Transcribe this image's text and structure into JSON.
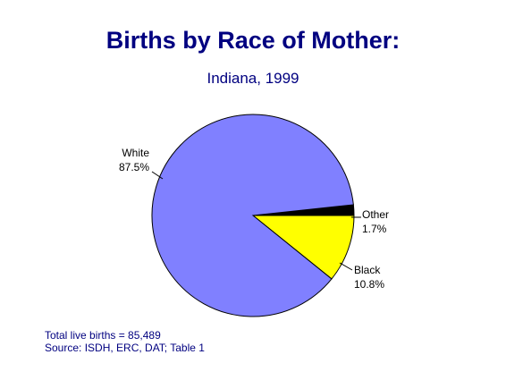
{
  "chart_data": {
    "type": "pie",
    "title": "Births by Race of Mother:",
    "subtitle": "Indiana, 1999",
    "slices": [
      {
        "name": "Other",
        "percent_label": "1.7%",
        "value": 1.7,
        "color": "#000000"
      },
      {
        "name": "Black",
        "percent_label": "10.8%",
        "value": 10.8,
        "color": "#ffff00"
      },
      {
        "name": "White",
        "percent_label": "87.5%",
        "value": 87.5,
        "color": "#8080ff"
      }
    ]
  },
  "footnote": {
    "total": "Total live births = 85,489",
    "source": "Source:  ISDH, ERC, DAT; Table 1"
  }
}
